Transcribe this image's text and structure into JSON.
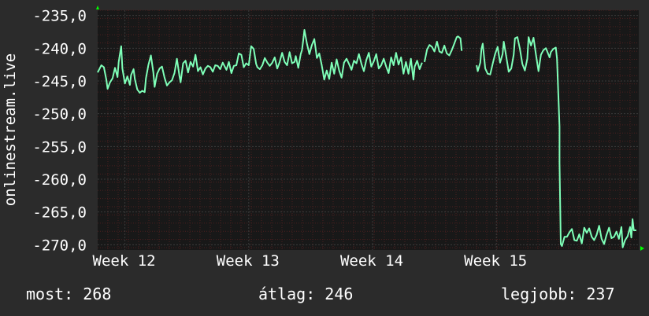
{
  "chart_data": {
    "type": "line",
    "ylabel": "onlinestream.live",
    "y_ticks": [
      "-235,0",
      "-240,0",
      "-245,0",
      "-250,0",
      "-255,0",
      "-260,0",
      "-265,0",
      "-270,0"
    ],
    "y_tick_values": [
      -235,
      -240,
      -245,
      -250,
      -255,
      -260,
      -265,
      -270
    ],
    "ylim": [
      -270.8,
      -234.2
    ],
    "x_ticks": [
      "Week 12",
      "Week 13",
      "Week 14",
      "Week 15"
    ],
    "x_tick_values": [
      12,
      13,
      14,
      15
    ],
    "xlim": [
      11.78,
      16.15
    ],
    "grid": true,
    "series": [
      {
        "color": "#7fffb8",
        "segments": [
          [
            [
              11.78,
              -243.7
            ],
            [
              11.81,
              -242.6
            ],
            [
              11.83,
              -242.9
            ],
            [
              11.85,
              -244.8
            ],
            [
              11.86,
              -246.2
            ],
            [
              11.88,
              -245.2
            ],
            [
              11.9,
              -244.6
            ],
            [
              11.92,
              -243.0
            ],
            [
              11.94,
              -244.4
            ],
            [
              11.95,
              -242.1
            ],
            [
              11.97,
              -239.7
            ],
            [
              11.98,
              -243.1
            ],
            [
              12.0,
              -245.4
            ],
            [
              12.02,
              -244.3
            ],
            [
              12.04,
              -245.6
            ],
            [
              12.05,
              -244.1
            ],
            [
              12.07,
              -243.2
            ],
            [
              12.08,
              -244.7
            ],
            [
              12.1,
              -246.3
            ],
            [
              12.12,
              -246.8
            ],
            [
              12.14,
              -246.5
            ],
            [
              12.16,
              -246.7
            ],
            [
              12.17,
              -244.6
            ],
            [
              12.19,
              -242.5
            ],
            [
              12.21,
              -241.1
            ],
            [
              12.23,
              -243.7
            ],
            [
              12.24,
              -245.9
            ],
            [
              12.26,
              -243.9
            ],
            [
              12.28,
              -243.1
            ],
            [
              12.3,
              -242.8
            ],
            [
              12.32,
              -244.5
            ],
            [
              12.34,
              -245.7
            ],
            [
              12.36,
              -245.2
            ],
            [
              12.38,
              -244.9
            ],
            [
              12.4,
              -243.8
            ],
            [
              12.42,
              -241.6
            ],
            [
              12.44,
              -244.2
            ],
            [
              12.45,
              -245.2
            ],
            [
              12.47,
              -242.3
            ],
            [
              12.49,
              -241.9
            ],
            [
              12.51,
              -243.7
            ],
            [
              12.53,
              -242.1
            ],
            [
              12.55,
              -242.8
            ],
            [
              12.57,
              -241.0
            ],
            [
              12.59,
              -243.5
            ],
            [
              12.61,
              -242.9
            ],
            [
              12.63,
              -244.0
            ],
            [
              12.65,
              -243.1
            ],
            [
              12.67,
              -242.7
            ],
            [
              12.69,
              -242.9
            ],
            [
              12.71,
              -243.6
            ],
            [
              12.73,
              -242.6
            ],
            [
              12.75,
              -242.7
            ],
            [
              12.77,
              -243.2
            ],
            [
              12.79,
              -242.2
            ],
            [
              12.82,
              -243.3
            ],
            [
              12.84,
              -242.1
            ],
            [
              12.86,
              -243.8
            ],
            [
              12.88,
              -242.7
            ],
            [
              12.9,
              -242.6
            ],
            [
              12.92,
              -240.8
            ],
            [
              12.94,
              -241.0
            ],
            [
              12.96,
              -242.9
            ],
            [
              12.98,
              -242.3
            ],
            [
              13.0,
              -242.6
            ],
            [
              13.02,
              -239.7
            ],
            [
              13.04,
              -240.1
            ],
            [
              13.06,
              -242.4
            ],
            [
              13.07,
              -242.9
            ],
            [
              13.09,
              -243.2
            ],
            [
              13.11,
              -242.6
            ],
            [
              13.13,
              -241.5
            ],
            [
              13.15,
              -242.2
            ],
            [
              13.17,
              -242.7
            ],
            [
              13.19,
              -242.2
            ],
            [
              13.21,
              -241.4
            ],
            [
              13.23,
              -243.1
            ],
            [
              13.25,
              -242.1
            ],
            [
              13.27,
              -240.7
            ],
            [
              13.29,
              -242.1
            ],
            [
              13.31,
              -242.6
            ],
            [
              13.33,
              -240.6
            ],
            [
              13.35,
              -242.3
            ],
            [
              13.37,
              -242.1
            ],
            [
              13.38,
              -241.2
            ],
            [
              13.4,
              -243.0
            ],
            [
              13.42,
              -240.9
            ],
            [
              13.43,
              -240.3
            ],
            [
              13.44,
              -238.8
            ],
            [
              13.45,
              -237.2
            ],
            [
              13.47,
              -239.3
            ],
            [
              13.49,
              -240.9
            ],
            [
              13.51,
              -239.5
            ],
            [
              13.53,
              -238.6
            ],
            [
              13.55,
              -241.5
            ],
            [
              13.57,
              -240.8
            ],
            [
              13.59,
              -242.6
            ],
            [
              13.61,
              -244.8
            ],
            [
              13.63,
              -243.4
            ],
            [
              13.65,
              -244.7
            ],
            [
              13.67,
              -242.2
            ],
            [
              13.69,
              -243.9
            ],
            [
              13.71,
              -241.7
            ],
            [
              13.73,
              -243.4
            ],
            [
              13.75,
              -244.5
            ],
            [
              13.77,
              -242.2
            ],
            [
              13.79,
              -241.6
            ],
            [
              13.81,
              -242.4
            ],
            [
              13.83,
              -243.3
            ],
            [
              13.85,
              -241.9
            ],
            [
              13.87,
              -242.3
            ],
            [
              13.89,
              -240.9
            ],
            [
              13.91,
              -242.4
            ],
            [
              13.93,
              -243.5
            ],
            [
              13.95,
              -241.8
            ],
            [
              13.97,
              -240.7
            ],
            [
              13.99,
              -242.8
            ],
            [
              14.01,
              -242.0
            ],
            [
              14.03,
              -240.9
            ],
            [
              14.05,
              -243.1
            ],
            [
              14.07,
              -242.6
            ],
            [
              14.09,
              -241.6
            ],
            [
              14.11,
              -242.8
            ],
            [
              14.13,
              -243.8
            ],
            [
              14.15,
              -241.4
            ],
            [
              14.17,
              -242.6
            ],
            [
              14.19,
              -240.7
            ],
            [
              14.21,
              -242.5
            ],
            [
              14.23,
              -241.4
            ],
            [
              14.25,
              -243.9
            ],
            [
              14.27,
              -242.1
            ],
            [
              14.29,
              -243.9
            ],
            [
              14.31,
              -241.6
            ],
            [
              14.33,
              -244.8
            ],
            [
              14.34,
              -242.8
            ],
            [
              14.36,
              -241.9
            ],
            [
              14.38,
              -243.2
            ],
            [
              14.4,
              -242.2
            ]
          ],
          [
            [
              14.42,
              -242.1
            ],
            [
              14.44,
              -240.2
            ],
            [
              14.46,
              -239.5
            ],
            [
              14.48,
              -239.8
            ],
            [
              14.5,
              -240.5
            ],
            [
              14.52,
              -239.0
            ],
            [
              14.54,
              -240.5
            ],
            [
              14.56,
              -240.7
            ],
            [
              14.58,
              -239.6
            ],
            [
              14.6,
              -240.8
            ],
            [
              14.62,
              -241.1
            ],
            [
              14.64,
              -240.3
            ],
            [
              14.66,
              -239.3
            ],
            [
              14.68,
              -238.3
            ],
            [
              14.69,
              -238.2
            ],
            [
              14.71,
              -238.5
            ],
            [
              14.72,
              -240.4
            ]
          ],
          [
            [
              14.84,
              -242.6
            ],
            [
              14.85,
              -243.5
            ],
            [
              14.87,
              -242.2
            ],
            [
              14.88,
              -240.1
            ],
            [
              14.89,
              -239.3
            ],
            [
              14.91,
              -243.1
            ],
            [
              14.93,
              -243.9
            ],
            [
              14.95,
              -244.0
            ],
            [
              14.97,
              -242.4
            ],
            [
              14.99,
              -240.9
            ],
            [
              15.01,
              -239.8
            ],
            [
              15.03,
              -242.2
            ],
            [
              15.05,
              -240.9
            ],
            [
              15.06,
              -239.0
            ],
            [
              15.08,
              -241.3
            ],
            [
              15.1,
              -243.6
            ],
            [
              15.12,
              -243.1
            ],
            [
              15.14,
              -241.0
            ],
            [
              15.15,
              -238.5
            ],
            [
              15.17,
              -238.3
            ],
            [
              15.19,
              -240.1
            ],
            [
              15.21,
              -242.4
            ],
            [
              15.23,
              -243.4
            ],
            [
              15.25,
              -241.6
            ],
            [
              15.26,
              -238.3
            ],
            [
              15.28,
              -239.6
            ],
            [
              15.3,
              -238.4
            ],
            [
              15.32,
              -241.0
            ],
            [
              15.34,
              -243.5
            ],
            [
              15.36,
              -241.0
            ],
            [
              15.38,
              -240.3
            ],
            [
              15.4,
              -240.0
            ],
            [
              15.43,
              -241.4
            ],
            [
              15.44,
              -240.6
            ],
            [
              15.46,
              -240.1
            ],
            [
              15.48,
              -239.9
            ],
            [
              15.49,
              -241.6
            ],
            [
              15.51,
              -252.0
            ],
            [
              15.51,
              -257.5
            ],
            [
              15.52,
              -269.9
            ],
            [
              15.53,
              -270.2
            ],
            [
              15.55,
              -268.8
            ],
            [
              15.57,
              -268.8
            ],
            [
              15.59,
              -268.1
            ],
            [
              15.61,
              -267.6
            ],
            [
              15.63,
              -269.3
            ],
            [
              15.65,
              -269.4
            ],
            [
              15.67,
              -268.4
            ],
            [
              15.69,
              -269.8
            ],
            [
              15.71,
              -267.4
            ],
            [
              15.73,
              -268.2
            ],
            [
              15.75,
              -267.5
            ],
            [
              15.77,
              -268.8
            ],
            [
              15.79,
              -269.3
            ],
            [
              15.81,
              -268.5
            ],
            [
              15.83,
              -267.1
            ],
            [
              15.85,
              -269.1
            ],
            [
              15.87,
              -269.9
            ],
            [
              15.89,
              -268.5
            ],
            [
              15.91,
              -267.4
            ],
            [
              15.93,
              -269.0
            ],
            [
              15.95,
              -268.8
            ],
            [
              15.97,
              -268.0
            ],
            [
              15.99,
              -269.1
            ],
            [
              16.01,
              -267.3
            ],
            [
              16.02,
              -270.4
            ],
            [
              16.04,
              -269.3
            ],
            [
              16.06,
              -268.7
            ],
            [
              16.08,
              -267.3
            ],
            [
              16.09,
              -268.9
            ],
            [
              16.1,
              -266.1
            ],
            [
              16.11,
              -267.8
            ],
            [
              16.13,
              -267.8
            ]
          ]
        ]
      }
    ]
  },
  "stats": {
    "current": "most: 268",
    "average": "átlag: 246",
    "best": "legjobb: 237"
  },
  "colors": {
    "background": "#2b2b2b",
    "plot_bg": "#181818",
    "grid_major": "#3a3a3a",
    "grid_minor": "#4a1f1f",
    "line": "#7fffb8",
    "axis_arrow": "#00ff00"
  }
}
